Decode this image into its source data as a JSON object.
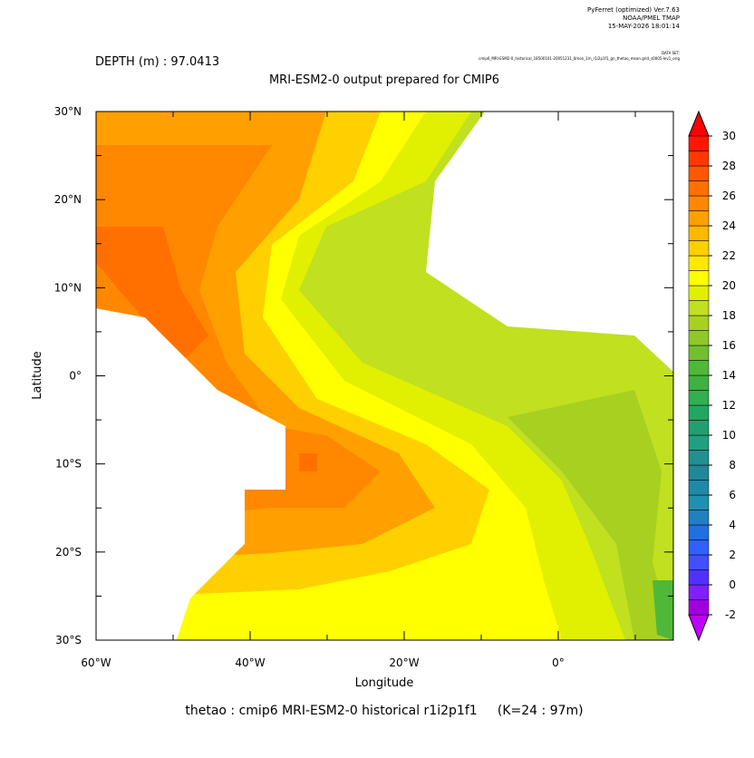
{
  "header": {
    "software": "PyFerret (optimized) Ver.7.63",
    "org": "NOAA/PMEL TMAP",
    "date": "15-MAY-2026 18:01:14",
    "dataset_label": "DATA SET:",
    "dataset": "cmip6_MRI-ESM2-0_historical_18500101-20051231_0mon_1m_r1i2p1f1_gn_thetao_mean.grid_s0005-lev1_orig"
  },
  "depth_label": "DEPTH (m) : 97.0413",
  "title": "MRI-ESM2-0 output prepared for CMIP6",
  "x_label": "Longitude",
  "y_label": "Latitude",
  "x_ticks": [
    "60°W",
    "40°W",
    "20°W",
    "0°"
  ],
  "y_ticks": [
    "30°N",
    "20°N",
    "10°N",
    "0°",
    "10°S",
    "20°S",
    "30°S"
  ],
  "caption": "thetao : cmip6 MRI-ESM2-0 historical r1i2p1f1     (K=24 : 97m)",
  "colorbar": {
    "ticks": [
      30,
      28,
      26,
      24,
      22,
      20,
      18,
      16,
      14,
      12,
      10,
      8,
      6,
      4,
      2,
      0,
      -2
    ],
    "colors": [
      "#a000e0",
      "#8020ff",
      "#5030ff",
      "#4050ff",
      "#3060ff",
      "#2070e0",
      "#2080c0",
      "#2090b0",
      "#2088a8",
      "#208898",
      "#209090",
      "#20a080",
      "#20a070",
      "#20a860",
      "#30b050",
      "#40b040",
      "#50b838",
      "#70c030",
      "#90c828",
      "#a8d020",
      "#c0e020",
      "#e0f000",
      "#ffff00",
      "#ffe800",
      "#ffd000",
      "#ffb800",
      "#ffa000",
      "#ff8800",
      "#ff7000",
      "#ff5800",
      "#ff3800",
      "#ff1800"
    ]
  }
}
